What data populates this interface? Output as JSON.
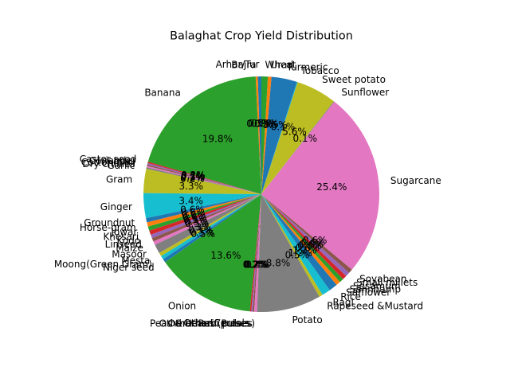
{
  "chart_data": {
    "type": "pie",
    "title": "Balaghat Crop Yield Distribution",
    "start_angle_deg": 90,
    "direction": "counterclockwise",
    "slices": [
      {
        "label": "Arhar/Tur",
        "value": 0.5,
        "color": "#1f77b4"
      },
      {
        "label": "Bajra",
        "value": 0.3,
        "color": "#ff7f0e"
      },
      {
        "label": "Banana",
        "value": 20.3,
        "color": "#2ca02c"
      },
      {
        "label": "Castor seed",
        "value": 0.2,
        "color": "#d62728"
      },
      {
        "label": "Coriander",
        "value": 0.2,
        "color": "#9467bd"
      },
      {
        "label": "Cotton(lint)",
        "value": 0.2,
        "color": "#8c564b"
      },
      {
        "label": "Dry chillies",
        "value": 0.2,
        "color": "#e377c2"
      },
      {
        "label": "Garlic",
        "value": 0.2,
        "color": "#7f7f7f"
      },
      {
        "label": "Gram",
        "value": 3.4,
        "color": "#bcbd22"
      },
      {
        "label": "Ginger",
        "value": 3.5,
        "color": "#17becf"
      },
      {
        "label": "Groundnut",
        "value": 0.6,
        "color": "#1f77b4"
      },
      {
        "label": "Horse-gram",
        "value": 0.6,
        "color": "#ff7f0e"
      },
      {
        "label": "Jowar",
        "value": 0.6,
        "color": "#2ca02c"
      },
      {
        "label": "Khesari",
        "value": 0.6,
        "color": "#d62728"
      },
      {
        "label": "Kodo",
        "value": 0.5,
        "color": "#9467bd"
      },
      {
        "label": "Linseed",
        "value": 0.5,
        "color": "#8c564b"
      },
      {
        "label": "Maize",
        "value": 0.5,
        "color": "#e377c2"
      },
      {
        "label": "Masoor",
        "value": 1.3,
        "color": "#7f7f7f"
      },
      {
        "label": "Mesta",
        "value": 0.5,
        "color": "#bcbd22"
      },
      {
        "label": "Moong(Green Gram)",
        "value": 0.5,
        "color": "#17becf"
      },
      {
        "label": "Niger seed",
        "value": 0.5,
        "color": "#1f77b4"
      },
      {
        "label": "Onion",
        "value": 14.0,
        "color": "#2ca02c"
      },
      {
        "label": "Other Cereals",
        "value": 0.2,
        "color": "#d62728"
      },
      {
        "label": "Other Kharif pulses",
        "value": 0.2,
        "color": "#9467bd"
      },
      {
        "label": "Other Rabi pulses",
        "value": 0.2,
        "color": "#8c564b"
      },
      {
        "label": "Peas & beans (Pulses)",
        "value": 0.4,
        "color": "#e377c2"
      },
      {
        "label": "Potato",
        "value": 9.0,
        "color": "#7f7f7f"
      },
      {
        "label": "Rapeseed &Mustard",
        "value": 0.5,
        "color": "#bcbd22"
      },
      {
        "label": "Ragi",
        "value": 1.2,
        "color": "#17becf"
      },
      {
        "label": "Rice",
        "value": 1.2,
        "color": "#1f77b4"
      },
      {
        "label": "Safflower",
        "value": 0.6,
        "color": "#ff7f0e"
      },
      {
        "label": "Sannhamp",
        "value": 0.6,
        "color": "#2ca02c"
      },
      {
        "label": "Sesamum",
        "value": 0.6,
        "color": "#d62728"
      },
      {
        "label": "Small millets",
        "value": 0.6,
        "color": "#9467bd"
      },
      {
        "label": "Soyabean",
        "value": 0.6,
        "color": "#8c564b"
      },
      {
        "label": "Sugarcane",
        "value": 26.1,
        "color": "#e377c2"
      },
      {
        "label": "Sunflower",
        "value": 0.1,
        "color": "#7f7f7f"
      },
      {
        "label": "Sweet potato",
        "value": 5.7,
        "color": "#bcbd22"
      },
      {
        "label": "Tobacco",
        "value": 0.1,
        "color": "#17becf"
      },
      {
        "label": "Turmeric",
        "value": 3.6,
        "color": "#1f77b4"
      },
      {
        "label": "Urad",
        "value": 0.5,
        "color": "#ff7f0e"
      },
      {
        "label": "Wheat",
        "value": 0.9,
        "color": "#2ca02c"
      }
    ]
  }
}
